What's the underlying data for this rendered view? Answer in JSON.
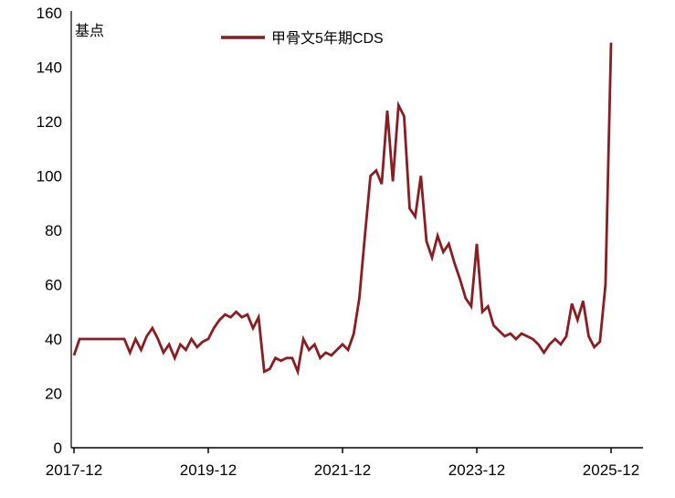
{
  "chart_data": {
    "type": "line",
    "title": "",
    "unit_label": "基点",
    "legend": "甲骨文5年期CDS",
    "line_color": "#8B1C21",
    "axis_color": "#000000",
    "x_start": "2017-12",
    "x_end": "2025-12",
    "frequency": "monthly",
    "x_tick_labels": [
      "2017-12",
      "2019-12",
      "2021-12",
      "2023-12",
      "2025-12"
    ],
    "y_ticks": [
      0,
      20,
      40,
      60,
      80,
      100,
      120,
      140,
      160
    ],
    "ylim": [
      0,
      160
    ],
    "grid": false,
    "legend_position": "top-center",
    "series": [
      {
        "name": "甲骨文5年期CDS",
        "values": [
          34,
          40,
          40,
          40,
          40,
          40,
          40,
          40,
          40,
          40,
          35,
          40,
          36,
          41,
          44,
          40,
          35,
          38,
          33,
          38,
          36,
          40,
          37,
          39,
          40,
          44,
          47,
          49,
          48,
          50,
          48,
          49,
          44,
          48,
          28,
          29,
          33,
          32,
          33,
          33,
          28,
          40,
          36,
          38,
          33,
          35,
          34,
          36,
          38,
          36,
          42,
          55,
          78,
          100,
          102,
          97,
          124,
          98,
          126,
          122,
          88,
          85,
          100,
          76,
          70,
          78,
          72,
          75,
          68,
          62,
          55,
          52,
          75,
          50,
          52,
          45,
          43,
          41,
          42,
          40,
          42,
          41,
          40,
          38,
          35,
          38,
          40,
          38,
          41,
          53,
          47,
          54,
          41,
          37,
          39,
          60,
          149
        ]
      }
    ]
  }
}
